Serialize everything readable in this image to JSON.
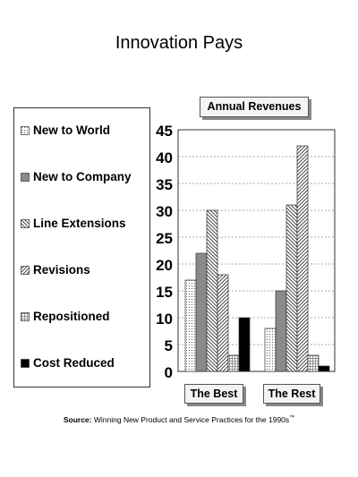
{
  "chart_data": {
    "type": "bar",
    "title": "Innovation Pays",
    "subtitle": "Annual Revenues",
    "categories": [
      "The Best",
      "The Rest"
    ],
    "series": [
      {
        "name": "New to World",
        "values": [
          17,
          8
        ],
        "pattern": "dots"
      },
      {
        "name": "New to Company",
        "values": [
          22,
          15
        ],
        "pattern": "solid-gray"
      },
      {
        "name": "Line Extensions",
        "values": [
          30,
          31
        ],
        "pattern": "diag-back"
      },
      {
        "name": "Revisions",
        "values": [
          18,
          42
        ],
        "pattern": "diag-fwd"
      },
      {
        "name": "Repositioned",
        "values": [
          3,
          3
        ],
        "pattern": "grid"
      },
      {
        "name": "Cost Reduced",
        "values": [
          10,
          1
        ],
        "pattern": "solid-black"
      }
    ],
    "ylim": [
      0,
      45
    ],
    "yticks": [
      "0",
      "5",
      "10",
      "15",
      "20",
      "25",
      "30",
      "35",
      "40",
      "45"
    ],
    "grid": true,
    "legend_position": "left"
  },
  "source": {
    "label": "Source:",
    "text": "Winning New Product and Service Practices for the 1990s",
    "tm": "™"
  },
  "colors": {
    "gray": "#8a8a8a",
    "black": "#000000",
    "grid": "#555555"
  }
}
